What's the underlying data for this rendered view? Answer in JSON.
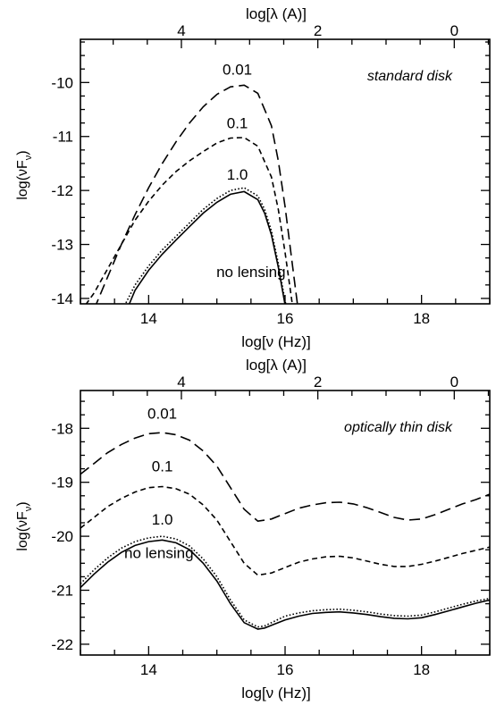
{
  "chart_data": [
    {
      "type": "line",
      "title": "",
      "xlabel": "log[ν (Hz)]",
      "ylabel_main": "log(νF",
      "ylabel_sub": "ν",
      "ylabel_close": ")",
      "top_xlabel": "log[λ (A)]",
      "annotation": "standard disk",
      "xlim": [
        13.0,
        19.0
      ],
      "ylim": [
        -14.1,
        -9.2
      ],
      "xticks": [
        14,
        16,
        18
      ],
      "yticks": [
        -14,
        -13,
        -12,
        -11,
        -10
      ],
      "top_ticks": [
        4,
        2,
        0
      ],
      "top_tick_positions_lognu": [
        14.48,
        16.48,
        18.48
      ],
      "series": [
        {
          "name": "0.01",
          "style": "longdash",
          "x": [
            13.2,
            13.4,
            13.6,
            13.8,
            14.0,
            14.2,
            14.4,
            14.6,
            14.8,
            15.0,
            15.2,
            15.4,
            15.6,
            15.8,
            15.9,
            16.0,
            16.1,
            16.2
          ],
          "y": [
            -14.2,
            -13.6,
            -13.0,
            -12.45,
            -11.95,
            -11.5,
            -11.1,
            -10.75,
            -10.45,
            -10.22,
            -10.08,
            -10.05,
            -10.2,
            -10.8,
            -11.45,
            -12.3,
            -13.3,
            -14.3
          ]
        },
        {
          "name": "0.1",
          "style": "shortdash",
          "x": [
            13.0,
            13.2,
            13.4,
            13.6,
            13.8,
            14.0,
            14.2,
            14.4,
            14.6,
            14.8,
            15.0,
            15.2,
            15.4,
            15.6,
            15.8,
            15.9,
            16.0,
            16.1,
            16.15
          ],
          "y": [
            -14.25,
            -13.9,
            -13.45,
            -13.0,
            -12.55,
            -12.2,
            -11.9,
            -11.65,
            -11.45,
            -11.28,
            -11.12,
            -11.03,
            -11.02,
            -11.18,
            -11.75,
            -12.35,
            -13.15,
            -14.05,
            -14.3
          ]
        },
        {
          "name": "1.0",
          "style": "dotted",
          "x": [
            13.6,
            13.8,
            14.0,
            14.2,
            14.4,
            14.6,
            14.8,
            15.0,
            15.2,
            15.4,
            15.6,
            15.7,
            15.8,
            15.9,
            16.0,
            16.05
          ],
          "y": [
            -14.25,
            -13.75,
            -13.4,
            -13.1,
            -12.85,
            -12.6,
            -12.35,
            -12.15,
            -12.0,
            -11.95,
            -12.1,
            -12.35,
            -12.75,
            -13.35,
            -14.05,
            -14.3
          ]
        },
        {
          "name": "no lensing",
          "style": "solid",
          "x": [
            13.65,
            13.8,
            14.0,
            14.2,
            14.4,
            14.6,
            14.8,
            15.0,
            15.2,
            15.4,
            15.6,
            15.7,
            15.8,
            15.9,
            16.0,
            16.05
          ],
          "y": [
            -14.3,
            -13.85,
            -13.48,
            -13.18,
            -12.92,
            -12.67,
            -12.42,
            -12.22,
            -12.07,
            -12.02,
            -12.17,
            -12.42,
            -12.82,
            -13.42,
            -14.12,
            -14.3
          ]
        }
      ],
      "labels": [
        {
          "text": "0.01",
          "x": 15.3,
          "y": -9.85
        },
        {
          "text": "0.1",
          "x": 15.3,
          "y": -10.85
        },
        {
          "text": "1.0",
          "x": 15.3,
          "y": -11.8
        },
        {
          "text": "no lensing",
          "x": 15.5,
          "y": -13.6
        }
      ]
    },
    {
      "type": "line",
      "title": "",
      "xlabel": "log[ν (Hz)]",
      "ylabel_main": "log(νF",
      "ylabel_sub": "ν",
      "ylabel_close": ")",
      "top_xlabel": "log[λ (A)]",
      "annotation": "optically thin disk",
      "xlim": [
        13.0,
        19.0
      ],
      "ylim": [
        -22.2,
        -17.3
      ],
      "xticks": [
        14,
        16,
        18
      ],
      "yticks": [
        -22,
        -21,
        -20,
        -19,
        -18
      ],
      "top_ticks": [
        4,
        2,
        0
      ],
      "top_tick_positions_lognu": [
        14.48,
        16.48,
        18.48
      ],
      "series": [
        {
          "name": "0.01",
          "style": "longdash",
          "x": [
            13.0,
            13.2,
            13.4,
            13.6,
            13.8,
            14.0,
            14.2,
            14.4,
            14.6,
            14.8,
            15.0,
            15.2,
            15.4,
            15.6,
            15.8,
            16.0,
            16.2,
            16.4,
            16.6,
            16.8,
            17.0,
            17.2,
            17.4,
            17.6,
            17.8,
            18.0,
            18.2,
            18.4,
            18.6,
            18.8,
            19.0
          ],
          "y": [
            -18.85,
            -18.65,
            -18.45,
            -18.3,
            -18.18,
            -18.1,
            -18.08,
            -18.12,
            -18.22,
            -18.42,
            -18.7,
            -19.1,
            -19.5,
            -19.72,
            -19.68,
            -19.58,
            -19.48,
            -19.42,
            -19.38,
            -19.37,
            -19.4,
            -19.47,
            -19.56,
            -19.65,
            -19.7,
            -19.68,
            -19.6,
            -19.5,
            -19.4,
            -19.32,
            -19.22
          ]
        },
        {
          "name": "0.1",
          "style": "shortdash",
          "x": [
            13.0,
            13.2,
            13.4,
            13.6,
            13.8,
            14.0,
            14.2,
            14.4,
            14.6,
            14.8,
            15.0,
            15.2,
            15.4,
            15.6,
            15.8,
            16.0,
            16.2,
            16.4,
            16.6,
            16.8,
            17.0,
            17.2,
            17.4,
            17.6,
            17.8,
            18.0,
            18.2,
            18.4,
            18.6,
            18.8,
            19.0
          ],
          "y": [
            -19.85,
            -19.65,
            -19.45,
            -19.3,
            -19.18,
            -19.1,
            -19.08,
            -19.12,
            -19.22,
            -19.42,
            -19.7,
            -20.1,
            -20.5,
            -20.72,
            -20.68,
            -20.58,
            -20.48,
            -20.42,
            -20.38,
            -20.37,
            -20.4,
            -20.46,
            -20.52,
            -20.56,
            -20.56,
            -20.52,
            -20.46,
            -20.39,
            -20.32,
            -20.26,
            -20.2
          ]
        },
        {
          "name": "1.0",
          "style": "dotted",
          "x": [
            13.0,
            13.2,
            13.4,
            13.6,
            13.8,
            14.0,
            14.2,
            14.4,
            14.6,
            14.8,
            15.0,
            15.2,
            15.4,
            15.6,
            15.7,
            15.8,
            16.0,
            16.2,
            16.4,
            16.6,
            16.8,
            17.0,
            17.2,
            17.4,
            17.6,
            17.8,
            18.0,
            18.2,
            18.4,
            18.6,
            18.8,
            19.0
          ],
          "y": [
            -20.88,
            -20.62,
            -20.4,
            -20.22,
            -20.1,
            -20.03,
            -20.0,
            -20.05,
            -20.18,
            -20.42,
            -20.75,
            -21.18,
            -21.55,
            -21.68,
            -21.66,
            -21.6,
            -21.48,
            -21.42,
            -21.38,
            -21.36,
            -21.35,
            -21.37,
            -21.4,
            -21.44,
            -21.47,
            -21.48,
            -21.46,
            -21.4,
            -21.33,
            -21.26,
            -21.2,
            -21.15
          ]
        },
        {
          "name": "no lensing",
          "style": "solid",
          "x": [
            13.0,
            13.2,
            13.4,
            13.6,
            13.8,
            14.0,
            14.2,
            14.4,
            14.6,
            14.8,
            15.0,
            15.2,
            15.4,
            15.6,
            15.7,
            15.8,
            16.0,
            16.2,
            16.4,
            16.6,
            16.8,
            17.0,
            17.2,
            17.4,
            17.6,
            17.8,
            18.0,
            18.2,
            18.4,
            18.6,
            18.8,
            19.0
          ],
          "y": [
            -20.95,
            -20.7,
            -20.48,
            -20.3,
            -20.17,
            -20.1,
            -20.07,
            -20.12,
            -20.25,
            -20.5,
            -20.83,
            -21.25,
            -21.6,
            -21.72,
            -21.7,
            -21.65,
            -21.55,
            -21.48,
            -21.43,
            -21.41,
            -21.4,
            -21.42,
            -21.45,
            -21.49,
            -21.52,
            -21.53,
            -21.51,
            -21.45,
            -21.38,
            -21.31,
            -21.24,
            -21.18
          ]
        }
      ],
      "labels": [
        {
          "text": "0.01",
          "x": 14.2,
          "y": -17.82
        },
        {
          "text": "0.1",
          "x": 14.2,
          "y": -18.8
        },
        {
          "text": "1.0",
          "x": 14.2,
          "y": -19.78
        },
        {
          "text": "no lensing",
          "x": 14.15,
          "y": -20.4
        }
      ]
    }
  ]
}
